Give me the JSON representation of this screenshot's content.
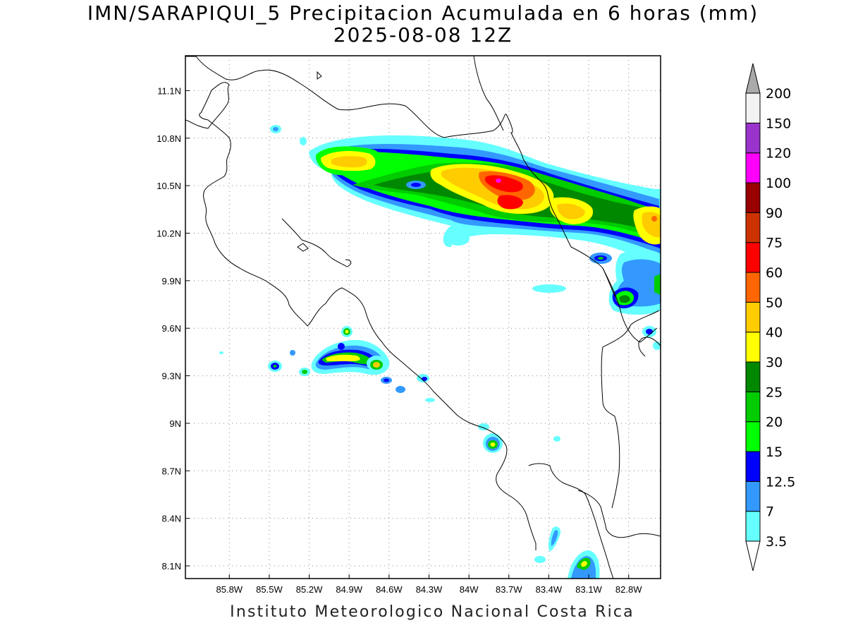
{
  "title": {
    "line1": "IMN/SARAPIQUI_5 Precipitacion Acumulada en 6 horas (mm)",
    "line2": "2025-08-08 12Z"
  },
  "footer": "Instituto Meteorologico Nacional Costa Rica",
  "map": {
    "lon_range": [
      -86.13,
      -82.56
    ],
    "lat_range": [
      8.02,
      11.32
    ],
    "lon_ticks": [
      "85.8W",
      "85.5W",
      "85.2W",
      "84.9W",
      "84.6W",
      "84.3W",
      "84W",
      "83.7W",
      "83.4W",
      "83.1W",
      "82.8W"
    ],
    "lat_ticks": [
      "11.1N",
      "10.8N",
      "10.5N",
      "10.2N",
      "9.9N",
      "9.6N",
      "9.3N",
      "9N",
      "8.7N",
      "8.4N",
      "8.1N"
    ],
    "gridlines": "dotted"
  },
  "colorbar": {
    "labels": [
      "3.5",
      "7",
      "12.5",
      "15",
      "20",
      "25",
      "30",
      "40",
      "50",
      "60",
      "75",
      "90",
      "100",
      "120",
      "150",
      "200"
    ],
    "colors": [
      "#ffffff",
      "#66ffff",
      "#3399ff",
      "#0000ff",
      "#00ff00",
      "#00cc00",
      "#008800",
      "#ffff00",
      "#ffcc00",
      "#ff6600",
      "#ff0000",
      "#cc3300",
      "#990000",
      "#ff00ff",
      "#9933cc",
      "#f2f2f2",
      "#aaaaaa"
    ]
  }
}
